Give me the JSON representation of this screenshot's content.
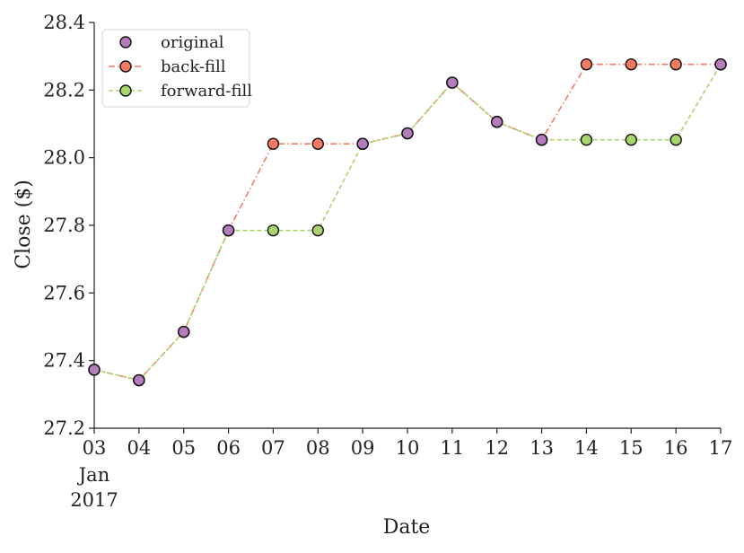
{
  "chart_data": {
    "type": "line",
    "xlabel": "Date",
    "ylabel": "Close ($)",
    "ylim": [
      27.2,
      28.4
    ],
    "yticks": [
      "27.2",
      "27.4",
      "27.6",
      "27.8",
      "28.0",
      "28.2",
      "28.4"
    ],
    "x": [
      "2017-01-03",
      "2017-01-04",
      "2017-01-05",
      "2017-01-06",
      "2017-01-07",
      "2017-01-08",
      "2017-01-09",
      "2017-01-10",
      "2017-01-11",
      "2017-01-12",
      "2017-01-13",
      "2017-01-14",
      "2017-01-15",
      "2017-01-16",
      "2017-01-17"
    ],
    "xticks": [
      "03",
      "04",
      "05",
      "06",
      "07",
      "08",
      "09",
      "10",
      "11",
      "12",
      "13",
      "14",
      "15",
      "16",
      "17"
    ],
    "xtick_sub": [
      "Jan",
      "2017"
    ],
    "legend_position": "top-left",
    "grid": false,
    "series": [
      {
        "name": "original",
        "color": "#b57bbd",
        "style": "none",
        "values": [
          27.373,
          27.342,
          27.485,
          27.785,
          null,
          null,
          28.041,
          28.072,
          28.222,
          28.106,
          28.053,
          null,
          null,
          null,
          28.276
        ]
      },
      {
        "name": "back-fill",
        "color": "#f47a62",
        "style": "dashdot",
        "values": [
          27.373,
          27.342,
          27.485,
          27.785,
          28.041,
          28.041,
          28.041,
          28.072,
          28.222,
          28.106,
          28.053,
          28.276,
          28.276,
          28.276,
          28.276
        ]
      },
      {
        "name": "forward-fill",
        "color": "#a9d46c",
        "style": "dashed",
        "values": [
          27.373,
          27.342,
          27.485,
          27.785,
          27.785,
          27.785,
          28.041,
          28.072,
          28.222,
          28.106,
          28.053,
          28.053,
          28.053,
          28.053,
          28.276
        ]
      }
    ]
  }
}
